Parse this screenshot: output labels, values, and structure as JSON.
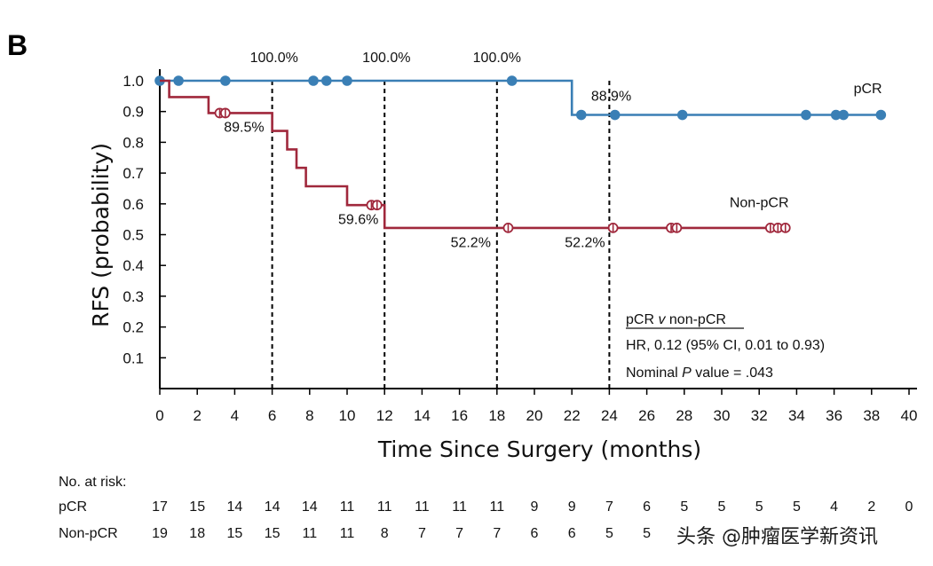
{
  "panel_label": "B",
  "watermark": "头条 @肿瘤医学新资讯",
  "risk_table": {
    "title": "No. at risk:",
    "rows": [
      {
        "label": "pCR",
        "values": [
          "17",
          "15",
          "14",
          "14",
          "14",
          "11",
          "11",
          "11",
          "11",
          "11",
          "9",
          "9",
          "7",
          "6",
          "5",
          "5",
          "5",
          "5",
          "4",
          "2",
          "0"
        ]
      },
      {
        "label": "Non-pCR",
        "values": [
          "19",
          "18",
          "15",
          "15",
          "11",
          "11",
          "8",
          "7",
          "7",
          "7",
          "6",
          "6",
          "5",
          "5",
          "",
          "",
          "",
          "",
          "",
          "",
          ""
        ]
      }
    ]
  },
  "stats": {
    "heading_pre": "pCR ",
    "heading_v": "v",
    "heading_post": " non-pCR",
    "hr": "HR, 0.12 (95% CI, 0.01 to 0.93)",
    "p_pre": "Nominal ",
    "p_italic": "P",
    "p_post": " value = .043"
  },
  "chart_data": {
    "type": "line",
    "subtype": "kaplan-meier",
    "title": "",
    "xlabel": "Time Since Surgery (months)",
    "ylabel": "RFS (probability)",
    "xlim": [
      0,
      40
    ],
    "ylim": [
      0,
      1.0
    ],
    "x_ticks": [
      0,
      2,
      4,
      6,
      8,
      10,
      12,
      14,
      16,
      18,
      20,
      22,
      24,
      26,
      28,
      30,
      32,
      34,
      36,
      38,
      40
    ],
    "y_ticks": [
      0.1,
      0.2,
      0.3,
      0.4,
      0.5,
      0.6,
      0.7,
      0.8,
      0.9,
      1.0
    ],
    "y_tick_labels": [
      "0.1",
      "0.2",
      "0.3",
      "0.4",
      "0.5",
      "0.6",
      "0.7",
      "0.8",
      "0.9",
      "1.0"
    ],
    "landmarks": [
      6,
      12,
      18,
      24
    ],
    "series": [
      {
        "name": "pCR",
        "color": "#3a7fb5",
        "marker": "filled-circle",
        "steps": [
          [
            0,
            1.0
          ],
          [
            22,
            1.0
          ],
          [
            22,
            0.889
          ],
          [
            38.5,
            0.889
          ]
        ],
        "censored": [
          [
            0,
            1.0
          ],
          [
            1,
            1.0
          ],
          [
            3.5,
            1.0
          ],
          [
            8.2,
            1.0
          ],
          [
            8.9,
            1.0
          ],
          [
            10,
            1.0
          ],
          [
            18.8,
            1.0
          ],
          [
            22.5,
            0.889
          ],
          [
            24.3,
            0.889
          ],
          [
            27.9,
            0.889
          ],
          [
            34.5,
            0.889
          ],
          [
            36.1,
            0.889
          ],
          [
            36.5,
            0.889
          ],
          [
            38.5,
            0.889
          ]
        ]
      },
      {
        "name": "Non-pCR",
        "color": "#a0283c",
        "marker": "open-circle",
        "steps": [
          [
            0,
            1.0
          ],
          [
            0.5,
            1.0
          ],
          [
            0.5,
            0.947
          ],
          [
            2.6,
            0.947
          ],
          [
            2.6,
            0.895
          ],
          [
            6,
            0.895
          ],
          [
            6,
            0.837
          ],
          [
            6.8,
            0.837
          ],
          [
            6.8,
            0.777
          ],
          [
            7.3,
            0.777
          ],
          [
            7.3,
            0.717
          ],
          [
            7.8,
            0.717
          ],
          [
            7.8,
            0.657
          ],
          [
            10,
            0.657
          ],
          [
            10,
            0.596
          ],
          [
            12,
            0.596
          ],
          [
            12,
            0.522
          ],
          [
            33.5,
            0.522
          ]
        ],
        "censored": [
          [
            3.2,
            0.895
          ],
          [
            3.5,
            0.895
          ],
          [
            11.3,
            0.596
          ],
          [
            11.6,
            0.596
          ],
          [
            18.6,
            0.522
          ],
          [
            24.2,
            0.522
          ],
          [
            27.3,
            0.522
          ],
          [
            27.6,
            0.522
          ],
          [
            32.6,
            0.522
          ],
          [
            33.0,
            0.522
          ],
          [
            33.4,
            0.522
          ]
        ]
      }
    ],
    "annotations": [
      {
        "text": "100.0%",
        "x": 6.1,
        "y": 1.06
      },
      {
        "text": "100.0%",
        "x": 12.1,
        "y": 1.06
      },
      {
        "text": "100.0%",
        "x": 18.0,
        "y": 1.06
      },
      {
        "text": "89.5%",
        "x": 4.5,
        "y": 0.835
      },
      {
        "text": "88.9%",
        "x": 24.1,
        "y": 0.935
      },
      {
        "text": "59.6%",
        "x": 10.6,
        "y": 0.535
      },
      {
        "text": "52.2%",
        "x": 16.6,
        "y": 0.46
      },
      {
        "text": "52.2%",
        "x": 22.7,
        "y": 0.46
      },
      {
        "text": "pCR",
        "x": 37.8,
        "y": 0.96
      },
      {
        "text": "Non-pCR",
        "x": 32.0,
        "y": 0.59
      }
    ]
  }
}
